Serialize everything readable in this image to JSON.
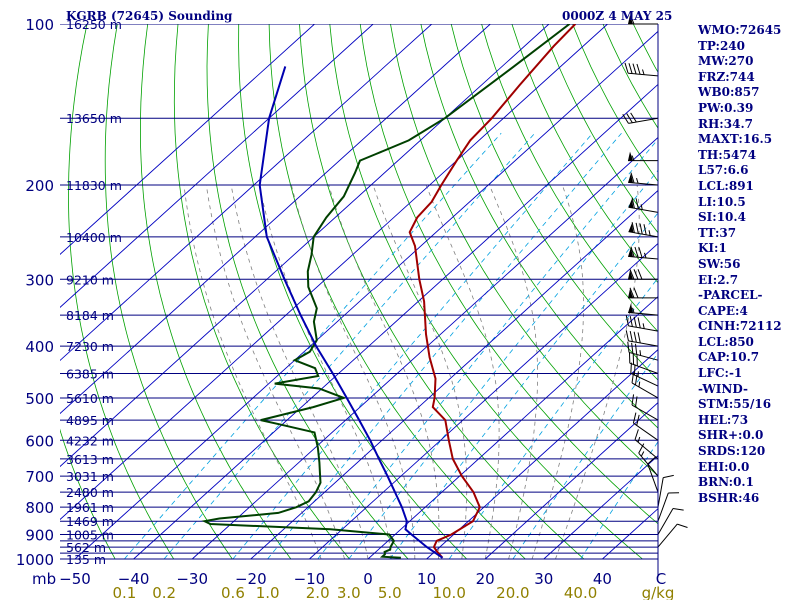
{
  "header": {
    "title_left": "KGRB (72645) Sounding",
    "title_right": "0000Z  4 MAY 25"
  },
  "params": [
    "WMO:72645",
    "TP:240",
    "MW:270",
    "FRZ:744",
    "WB0:857",
    "PW:0.39",
    "RH:34.7",
    "MAXT:16.5",
    "TH:5474",
    "L57:6.6",
    "LCL:891",
    "LI:10.5",
    "SI:10.4",
    "TT:37",
    "KI:1",
    "SW:56",
    "EI:2.7",
    "-PARCEL-",
    "CAPE:4",
    "CINH:72112",
    "LCL:850",
    "CAP:10.7",
    "LFC:-1",
    "-WIND-",
    "STM:55/16",
    "HEL:73",
    "SHR+:0.0",
    "SRDS:120",
    "EHI:0.0",
    "BRN:0.1",
    "BSHR:46"
  ],
  "colors": {
    "isobar": "#000080",
    "isotherm": "#0000c0",
    "dry_adiabat": "#00a000",
    "moist_adiabat": "#808080",
    "mixing_ratio": "#00a0e0",
    "temperature": "#a00000",
    "dewpoint": "#004000",
    "parcel": "#0000b0",
    "text": "#000080",
    "wind_barb": "#000000"
  },
  "chart_data": {
    "type": "skew-t",
    "title": "KGRB (72645) Sounding",
    "pressure_axis": {
      "label": "mb",
      "ticks": [
        100,
        200,
        300,
        400,
        500,
        600,
        700,
        800,
        900,
        1000
      ],
      "isobars": [
        100,
        150,
        200,
        250,
        300,
        350,
        400,
        450,
        500,
        550,
        600,
        650,
        700,
        750,
        800,
        850,
        900,
        925,
        950,
        975,
        1000
      ],
      "scale": "log",
      "range": [
        1000,
        100
      ]
    },
    "height_labels": [
      {
        "p": 100,
        "label": "16250 m"
      },
      {
        "p": 150,
        "label": "13650 m"
      },
      {
        "p": 200,
        "label": "11830 m"
      },
      {
        "p": 250,
        "label": "10400 m"
      },
      {
        "p": 300,
        "label": "9210 m"
      },
      {
        "p": 350,
        "label": "8184 m"
      },
      {
        "p": 400,
        "label": "7230 m"
      },
      {
        "p": 450,
        "label": "6385 m"
      },
      {
        "p": 500,
        "label": "5610 m"
      },
      {
        "p": 550,
        "label": "4895 m"
      },
      {
        "p": 600,
        "label": "4232 m"
      },
      {
        "p": 650,
        "label": "3613 m"
      },
      {
        "p": 700,
        "label": "3031 m"
      },
      {
        "p": 750,
        "label": "2480 m"
      },
      {
        "p": 800,
        "label": "1961 m"
      },
      {
        "p": 850,
        "label": "1469 m"
      },
      {
        "p": 900,
        "label": "1005 m"
      },
      {
        "p": 950,
        "label": "562 m"
      },
      {
        "p": 1000,
        "label": "135 m"
      }
    ],
    "temperature_axis": {
      "label": "C",
      "ticks": [
        -50,
        -40,
        -30,
        -20,
        -10,
        0,
        10,
        20,
        30,
        40
      ],
      "unit": "C"
    },
    "mixing_ratio_axis": {
      "label": "g/kg",
      "ticks": [
        "0.1",
        "0.2",
        "0.6",
        "1.0",
        "2.0",
        "3.0",
        "5.0",
        "10.0",
        "20.0",
        "40.0"
      ]
    },
    "isotherm_range": [
      -110,
      50
    ],
    "dry_adiabats_theta_k": [
      210,
      220,
      230,
      240,
      250,
      260,
      270,
      280,
      290,
      300,
      310,
      320,
      330,
      340,
      350,
      360,
      370,
      380,
      390,
      400,
      410,
      420,
      430,
      440,
      450,
      460,
      470,
      480,
      490,
      500
    ],
    "moist_adiabats_c": [
      -8,
      -4,
      0,
      4,
      8,
      12,
      16,
      20,
      24,
      28,
      32
    ],
    "mixing_ratios_gkg": [
      0.1,
      0.2,
      0.6,
      1.0,
      2.0,
      3.0,
      5.0,
      10.0,
      20.0,
      40.0
    ],
    "series": [
      {
        "name": "temperature",
        "points": [
          [
            995,
            12.5
          ],
          [
            970,
            10.5
          ],
          [
            950,
            9.0
          ],
          [
            925,
            8.3
          ],
          [
            900,
            9.6
          ],
          [
            850,
            10.8
          ],
          [
            800,
            9.3
          ],
          [
            750,
            5.4
          ],
          [
            700,
            0.4
          ],
          [
            650,
            -4.4
          ],
          [
            600,
            -8.6
          ],
          [
            550,
            -13.0
          ],
          [
            520,
            -17.6
          ],
          [
            500,
            -19.0
          ],
          [
            460,
            -22.5
          ],
          [
            420,
            -27.5
          ],
          [
            380,
            -32.5
          ],
          [
            330,
            -39.0
          ],
          [
            300,
            -44.0
          ],
          [
            260,
            -51.0
          ],
          [
            245,
            -54.5
          ],
          [
            230,
            -56.0
          ],
          [
            215,
            -56.5
          ],
          [
            200,
            -58.0
          ],
          [
            180,
            -60.0
          ],
          [
            165,
            -61.5
          ],
          [
            150,
            -62.0
          ],
          [
            130,
            -63.5
          ],
          [
            110,
            -65.0
          ],
          [
            100,
            -65.5
          ]
        ]
      },
      {
        "name": "dewpoint",
        "points": [
          [
            995,
            5.4
          ],
          [
            990,
            2.0
          ],
          [
            980,
            2.0
          ],
          [
            970,
            1.5
          ],
          [
            960,
            2.0
          ],
          [
            950,
            1.6
          ],
          [
            925,
            1.0
          ],
          [
            900,
            -1.0
          ],
          [
            880,
            -12.0
          ],
          [
            860,
            -33.5
          ],
          [
            850,
            -35.0
          ],
          [
            840,
            -33.0
          ],
          [
            820,
            -24.0
          ],
          [
            800,
            -22.0
          ],
          [
            780,
            -21.0
          ],
          [
            750,
            -21.5
          ],
          [
            720,
            -22.5
          ],
          [
            700,
            -23.8
          ],
          [
            660,
            -26.5
          ],
          [
            620,
            -29.5
          ],
          [
            580,
            -33.0
          ],
          [
            560,
            -40.5
          ],
          [
            550,
            -44.5
          ],
          [
            520,
            -38.0
          ],
          [
            500,
            -34.5
          ],
          [
            480,
            -40.5
          ],
          [
            470,
            -49.0
          ],
          [
            455,
            -43.0
          ],
          [
            440,
            -45.0
          ],
          [
            425,
            -50.0
          ],
          [
            410,
            -49.0
          ],
          [
            390,
            -50.0
          ],
          [
            360,
            -54.0
          ],
          [
            340,
            -56.0
          ],
          [
            310,
            -61.5
          ],
          [
            290,
            -64.5
          ],
          [
            270,
            -67.0
          ],
          [
            250,
            -70.0
          ],
          [
            230,
            -71.5
          ],
          [
            210,
            -72.5
          ],
          [
            190,
            -75.0
          ],
          [
            180,
            -76.5
          ],
          [
            175,
            -75.0
          ],
          [
            165,
            -72.0
          ],
          [
            150,
            -70.0
          ],
          [
            120,
            -68.0
          ],
          [
            100,
            -66.5
          ]
        ]
      },
      {
        "name": "parcel",
        "points": [
          [
            995,
            12.5
          ],
          [
            950,
            7.8
          ],
          [
            900,
            2.8
          ],
          [
            880,
            0.8
          ],
          [
            850,
            -0.5
          ],
          [
            800,
            -4.0
          ],
          [
            750,
            -8.0
          ],
          [
            700,
            -12.3
          ],
          [
            650,
            -17.0
          ],
          [
            600,
            -22.0
          ],
          [
            550,
            -27.7
          ],
          [
            500,
            -34.0
          ],
          [
            450,
            -41.0
          ],
          [
            400,
            -49.0
          ],
          [
            350,
            -57.5
          ],
          [
            300,
            -67.0
          ],
          [
            250,
            -78.0
          ],
          [
            200,
            -89.0
          ],
          [
            150,
            -100.0
          ],
          [
            120,
            -107.0
          ]
        ]
      }
    ],
    "wind_barbs": [
      {
        "p": 100,
        "dir": 270,
        "kt": 55
      },
      {
        "p": 125,
        "dir": 275,
        "kt": 45
      },
      {
        "p": 150,
        "dir": 260,
        "kt": 30
      },
      {
        "p": 180,
        "dir": 270,
        "kt": 55
      },
      {
        "p": 200,
        "dir": 275,
        "kt": 65
      },
      {
        "p": 225,
        "dir": 280,
        "kt": 75
      },
      {
        "p": 250,
        "dir": 280,
        "kt": 95
      },
      {
        "p": 275,
        "dir": 275,
        "kt": 85
      },
      {
        "p": 300,
        "dir": 270,
        "kt": 80
      },
      {
        "p": 325,
        "dir": 270,
        "kt": 70
      },
      {
        "p": 350,
        "dir": 275,
        "kt": 55
      },
      {
        "p": 375,
        "dir": 280,
        "kt": 45
      },
      {
        "p": 400,
        "dir": 280,
        "kt": 40
      },
      {
        "p": 425,
        "dir": 285,
        "kt": 35
      },
      {
        "p": 450,
        "dir": 290,
        "kt": 30
      },
      {
        "p": 475,
        "dir": 295,
        "kt": 25
      },
      {
        "p": 500,
        "dir": 300,
        "kt": 25
      },
      {
        "p": 550,
        "dir": 300,
        "kt": 20
      },
      {
        "p": 600,
        "dir": 305,
        "kt": 20
      },
      {
        "p": 650,
        "dir": 310,
        "kt": 15
      },
      {
        "p": 700,
        "dir": 320,
        "kt": 15
      },
      {
        "p": 750,
        "dir": 340,
        "kt": 10
      },
      {
        "p": 800,
        "dir": 10,
        "kt": 10
      },
      {
        "p": 850,
        "dir": 20,
        "kt": 10
      },
      {
        "p": 900,
        "dir": 30,
        "kt": 10
      },
      {
        "p": 950,
        "dir": 40,
        "kt": 10
      }
    ]
  }
}
